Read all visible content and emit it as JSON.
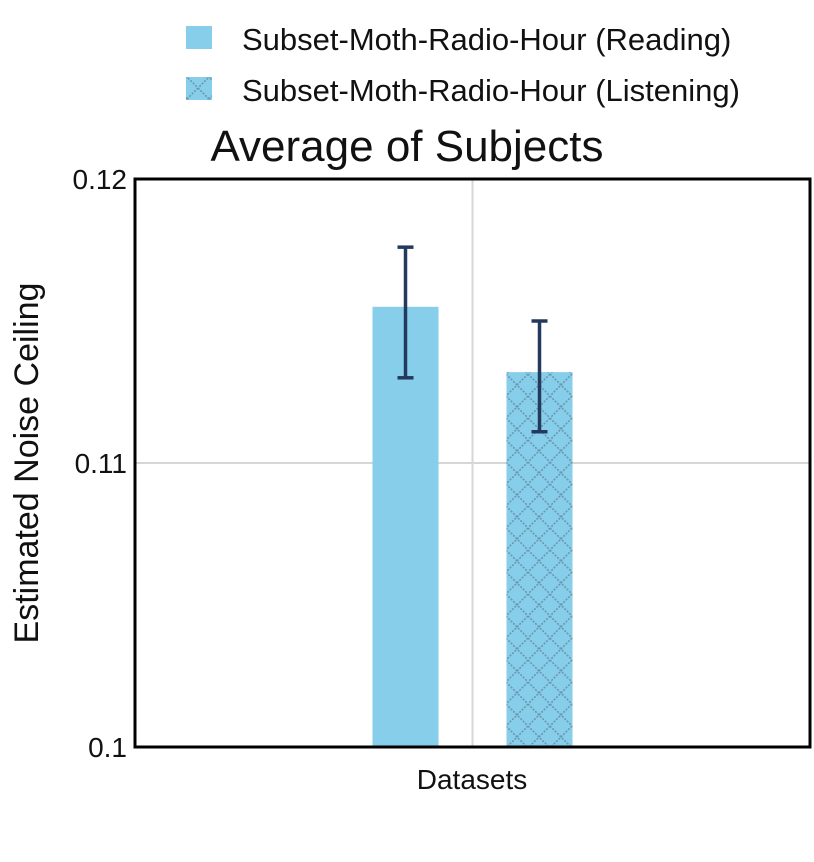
{
  "chart_data": {
    "type": "bar",
    "title": "Average of Subjects",
    "xlabel": "Datasets",
    "ylabel": "Estimated Noise Ceiling",
    "ylim": [
      0.1,
      0.12
    ],
    "yticks": [
      0.1,
      0.11,
      0.12
    ],
    "ytick_labels": [
      "0.1",
      "0.11",
      "0.12"
    ],
    "legend_position": "top",
    "grid": true,
    "series": [
      {
        "name": "Subset-Moth-Radio-Hour (Reading)",
        "value": 0.1155,
        "error_low": 0.113,
        "error_high": 0.1176,
        "color": "#87ceeb",
        "pattern": "solid"
      },
      {
        "name": "Subset-Moth-Radio-Hour (Listening)",
        "value": 0.1132,
        "error_low": 0.1111,
        "error_high": 0.115,
        "color": "#87ceeb",
        "pattern": "crosshatch"
      }
    ],
    "error_bar_color": "#233a5e"
  }
}
